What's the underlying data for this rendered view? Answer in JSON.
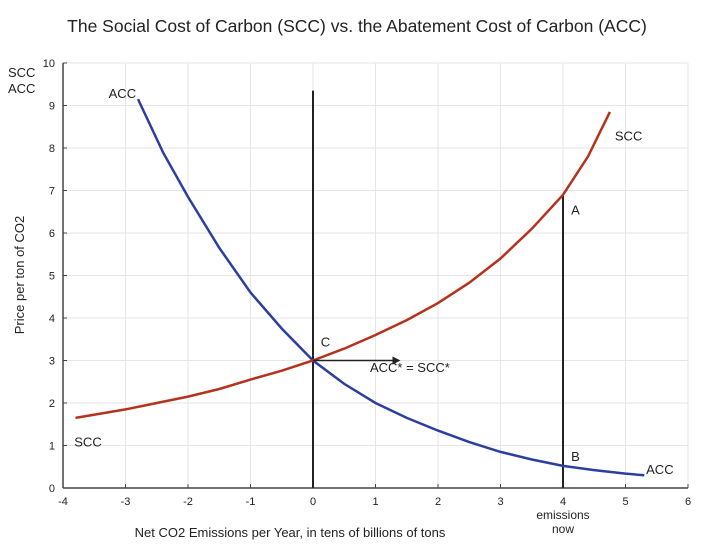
{
  "chart_data": {
    "type": "line",
    "title": "The Social Cost of Carbon (SCC) vs. the Abatement Cost of Carbon (ACC)",
    "xlabel": "Net CO2 Emissions per Year, in tens of billions of tons",
    "ylabel": "Price per ton of CO2",
    "y_corner_label": [
      "SCC",
      "ACC"
    ],
    "xlim": [
      -4,
      6
    ],
    "ylim": [
      0,
      10
    ],
    "xticks": [
      -4,
      -3,
      -2,
      -1,
      0,
      1,
      2,
      3,
      4,
      5,
      6
    ],
    "yticks": [
      0,
      1,
      2,
      3,
      4,
      5,
      6,
      7,
      8,
      9,
      10
    ],
    "grid": true,
    "series": [
      {
        "name": "ACC",
        "color": "#2c3fa0",
        "x": [
          -2.8,
          -2.4,
          -2,
          -1.5,
          -1,
          -0.5,
          0,
          0.5,
          1,
          1.5,
          2,
          2.5,
          3,
          3.5,
          4,
          4.5,
          5,
          5.3
        ],
        "y": [
          9.15,
          7.9,
          6.85,
          5.65,
          4.6,
          3.75,
          3.0,
          2.45,
          2.0,
          1.65,
          1.35,
          1.08,
          0.85,
          0.67,
          0.52,
          0.42,
          0.34,
          0.3
        ]
      },
      {
        "name": "SCC",
        "color": "#b5321c",
        "x": [
          -3.8,
          -3,
          -2.5,
          -2,
          -1.5,
          -1,
          -0.5,
          0,
          0.5,
          1,
          1.5,
          2,
          2.5,
          3,
          3.5,
          4,
          4.4,
          4.75
        ],
        "y": [
          1.65,
          1.85,
          2.0,
          2.15,
          2.33,
          2.55,
          2.76,
          3.0,
          3.28,
          3.6,
          3.95,
          4.35,
          4.83,
          5.4,
          6.1,
          6.9,
          7.8,
          8.85
        ]
      }
    ],
    "vertical_lines": [
      {
        "x": 0,
        "y_top": 9.35
      },
      {
        "x": 4,
        "y_top": 6.9
      }
    ],
    "arrow": {
      "from": [
        0,
        3
      ],
      "to": [
        1.4,
        3
      ]
    },
    "annotations": [
      {
        "text": "ACC",
        "x": -3.05,
        "y": 9.3
      },
      {
        "text": "SCC",
        "x": 5.05,
        "y": 8.3
      },
      {
        "text": "SCC",
        "x": -3.6,
        "y": 1.1
      },
      {
        "text": "ACC",
        "x": 5.55,
        "y": 0.45
      },
      {
        "text": "A",
        "x": 4.2,
        "y": 6.55
      },
      {
        "text": "B",
        "x": 4.2,
        "y": 0.75
      },
      {
        "text": "C",
        "x": 0.2,
        "y": 3.45
      },
      {
        "text": "ACC* = SCC*",
        "x": 1.55,
        "y": 2.85
      }
    ],
    "x_tick_extra": {
      "x": 4,
      "lines": [
        "emissions",
        "now"
      ]
    }
  }
}
